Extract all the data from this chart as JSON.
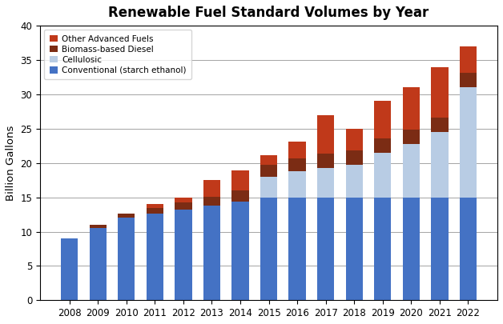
{
  "title": "Renewable Fuel Standard Volumes by Year",
  "ylabel": "Billion Gallons",
  "years": [
    2008,
    2009,
    2010,
    2011,
    2012,
    2013,
    2014,
    2015,
    2016,
    2017,
    2018,
    2019,
    2020,
    2021,
    2022
  ],
  "conventional": [
    9.0,
    10.5,
    12.0,
    12.6,
    13.2,
    13.8,
    14.4,
    15.0,
    15.0,
    15.0,
    15.0,
    15.0,
    15.0,
    15.0,
    15.0
  ],
  "cellulosic": [
    0.0,
    0.0,
    0.0,
    0.0,
    0.0,
    0.0,
    0.0,
    3.0,
    3.75,
    4.25,
    4.75,
    6.5,
    7.75,
    9.5,
    16.0
  ],
  "biomass_diesel": [
    0.0,
    0.5,
    0.65,
    0.8,
    1.0,
    1.28,
    1.63,
    1.73,
    1.9,
    2.1,
    2.1,
    2.1,
    2.1,
    2.1,
    2.1
  ],
  "other_advanced": [
    0.0,
    0.0,
    0.0,
    0.6,
    0.8,
    2.4,
    2.9,
    1.4,
    2.5,
    5.65,
    3.15,
    5.4,
    6.15,
    7.4,
    3.9
  ],
  "colors": {
    "conventional": "#4472C4",
    "cellulosic": "#B8CCE4",
    "biomass_diesel": "#7B2C14",
    "other_advanced": "#C0391A"
  },
  "legend_labels": [
    "Other Advanced Fuels",
    "Biomass-based Diesel",
    "Cellulosic",
    "Conventional (starch ethanol)"
  ],
  "ylim": [
    0,
    40
  ],
  "yticks": [
    0,
    5,
    10,
    15,
    20,
    25,
    30,
    35,
    40
  ],
  "figsize": [
    6.28,
    4.05
  ],
  "dpi": 100
}
